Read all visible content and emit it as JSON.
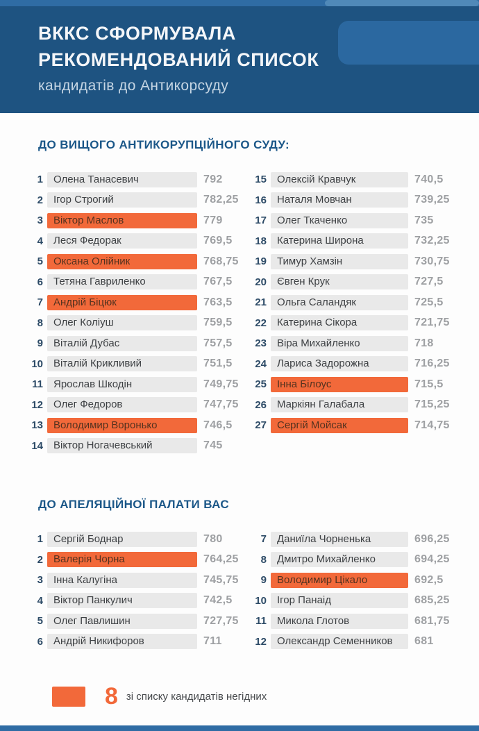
{
  "header": {
    "title_line1": "ВККС СФОРМУВАЛА",
    "title_line2": "РЕКОМЕНДОВАНИЙ СПИСОК",
    "subtitle": "кандидатів до Антикорсуду"
  },
  "chart_data": {
    "type": "table",
    "title": "ВККС СФОРМУВАЛА РЕКОМЕНДОВАНИЙ СПИСОК кандидатів до Антикорсуду",
    "sections": [
      {
        "heading": "ДО ВИЩОГО АНТИКОРУПЦІЙНОГО СУДУ:",
        "columns": [
          [
            {
              "rank": "1",
              "name": "Олена Танасевич",
              "score": "792",
              "highlighted": false
            },
            {
              "rank": "2",
              "name": "Ігор Строгий",
              "score": "782,25",
              "highlighted": false
            },
            {
              "rank": "3",
              "name": "Віктор Маслов",
              "score": "779",
              "highlighted": true
            },
            {
              "rank": "4",
              "name": "Леся Федорак",
              "score": "769,5",
              "highlighted": false
            },
            {
              "rank": "5",
              "name": "Оксана Олійник",
              "score": "768,75",
              "highlighted": true
            },
            {
              "rank": "6",
              "name": "Тетяна Гавриленко",
              "score": "767,5",
              "highlighted": false
            },
            {
              "rank": "7",
              "name": "Андрій Біцюк",
              "score": "763,5",
              "highlighted": true
            },
            {
              "rank": "8",
              "name": "Олег Коліуш",
              "score": "759,5",
              "highlighted": false
            },
            {
              "rank": "9",
              "name": "Віталій Дубас",
              "score": "757,5",
              "highlighted": false
            },
            {
              "rank": "10",
              "name": "Віталій Крикливий",
              "score": "751,5",
              "highlighted": false
            },
            {
              "rank": "11",
              "name": "Ярослав Шкодін",
              "score": "749,75",
              "highlighted": false
            },
            {
              "rank": "12",
              "name": "Олег Федоров",
              "score": "747,75",
              "highlighted": false
            },
            {
              "rank": "13",
              "name": "Володимир Воронько",
              "score": "746,5",
              "highlighted": true
            },
            {
              "rank": "14",
              "name": "Віктор Ногачевський",
              "score": "745",
              "highlighted": false
            }
          ],
          [
            {
              "rank": "15",
              "name": "Олексій Кравчук",
              "score": "740,5",
              "highlighted": false
            },
            {
              "rank": "16",
              "name": "Наталя Мовчан",
              "score": "739,25",
              "highlighted": false
            },
            {
              "rank": "17",
              "name": "Олег Ткаченко",
              "score": "735",
              "highlighted": false
            },
            {
              "rank": "18",
              "name": "Катерина Широна",
              "score": "732,25",
              "highlighted": false
            },
            {
              "rank": "19",
              "name": "Тимур Хамзін",
              "score": "730,75",
              "highlighted": false
            },
            {
              "rank": "20",
              "name": "Євген Крук",
              "score": "727,5",
              "highlighted": false
            },
            {
              "rank": "21",
              "name": "Ольга Саландяк",
              "score": "725,5",
              "highlighted": false
            },
            {
              "rank": "22",
              "name": "Катерина Сікора",
              "score": "721,75",
              "highlighted": false
            },
            {
              "rank": "23",
              "name": "Віра Михайленко",
              "score": "718",
              "highlighted": false
            },
            {
              "rank": "24",
              "name": "Лариса Задорожна",
              "score": "716,25",
              "highlighted": false
            },
            {
              "rank": "25",
              "name": "Інна Білоус",
              "score": "715,5",
              "highlighted": true
            },
            {
              "rank": "26",
              "name": "Маркіян Галабала",
              "score": "715,25",
              "highlighted": false
            },
            {
              "rank": "27",
              "name": "Сергій Мойсак",
              "score": "714,75",
              "highlighted": true
            }
          ]
        ]
      },
      {
        "heading": "ДО АПЕЛЯЦІЙНОЇ ПАЛАТИ ВАС",
        "columns": [
          [
            {
              "rank": "1",
              "name": "Сергій Боднар",
              "score": "780",
              "highlighted": false
            },
            {
              "rank": "2",
              "name": "Валерія Чорна",
              "score": "764,25",
              "highlighted": true
            },
            {
              "rank": "3",
              "name": "Інна Калугіна",
              "score": "745,75",
              "highlighted": false
            },
            {
              "rank": "4",
              "name": "Віктор Панкулич",
              "score": "742,5",
              "highlighted": false
            },
            {
              "rank": "5",
              "name": "Олег Павлишин",
              "score": "727,75",
              "highlighted": false
            },
            {
              "rank": "6",
              "name": "Андрій Никифоров",
              "score": "711",
              "highlighted": false
            }
          ],
          [
            {
              "rank": "7",
              "name": "Даниїла Чорненька",
              "score": "696,25",
              "highlighted": false
            },
            {
              "rank": "8",
              "name": "Дмитро Михайленко",
              "score": "694,25",
              "highlighted": false
            },
            {
              "rank": "9",
              "name": "Володимир Цікало",
              "score": "692,5",
              "highlighted": true
            },
            {
              "rank": "10",
              "name": "Ігор Панаід",
              "score": "685,25",
              "highlighted": false
            },
            {
              "rank": "11",
              "name": "Микола Глотов",
              "score": "681,75",
              "highlighted": false
            },
            {
              "rank": "12",
              "name": "Олександр Семенников",
              "score": "681",
              "highlighted": false
            }
          ]
        ]
      }
    ],
    "legend": {
      "count": "8",
      "label": "зі списку кандидатів негідних",
      "highlight_color": "#f2693a"
    }
  },
  "colors": {
    "header_bg": "#1e5381",
    "top_strip": "#2f6ca4",
    "heading_blue": "#1b5788",
    "row_pill_bg": "#e9e9e9",
    "highlight_orange": "#f2693a",
    "score_gray": "#9ea0a3"
  }
}
